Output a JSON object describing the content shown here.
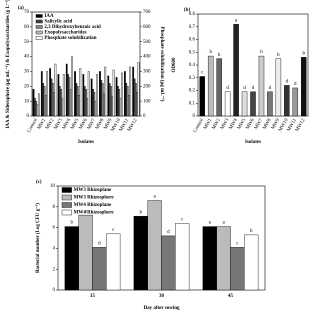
{
  "chart_data": [
    {
      "type": "bar",
      "panel": "(a)",
      "xlabel": "Isolates",
      "ylabel": "IAA & Siderophore (µg mL⁻¹) & Exopolysaccharides (g L⁻¹)",
      "y2label": "Phosphate solubilization (µg mL⁻¹)",
      "categories": [
        "Control",
        "MW1",
        "MW2",
        "MW3",
        "MW4",
        "MW5",
        "MW6",
        "MW7",
        "MW8",
        "MW9",
        "MW10",
        "MW11",
        "MW12"
      ],
      "series": [
        {
          "name": "IAA",
          "color": "#000000",
          "values": [
            18,
            30,
            32,
            28,
            35,
            30,
            28,
            25,
            30,
            27,
            26,
            30,
            33
          ]
        },
        {
          "name": "Salicylic acid",
          "color": "#444444",
          "values": [
            12,
            22,
            25,
            20,
            28,
            22,
            20,
            18,
            24,
            22,
            20,
            22,
            25
          ]
        },
        {
          "name": "2,3 Dihydroxybenzoic acid",
          "color": "#888888",
          "values": [
            10,
            20,
            22,
            18,
            26,
            20,
            18,
            16,
            22,
            20,
            18,
            20,
            22
          ]
        },
        {
          "name": "Exopolysaccharides",
          "color": "#bbbbbb",
          "values": [
            8,
            14,
            16,
            12,
            18,
            14,
            12,
            10,
            15,
            13,
            12,
            14,
            16
          ]
        },
        {
          "name": "Phosphate solubilization",
          "color": "#ffffff",
          "axis": "y2",
          "values": [
            150,
            300,
            350,
            280,
            400,
            320,
            300,
            280,
            330,
            310,
            290,
            330,
            360
          ]
        }
      ],
      "ylim": [
        0,
        70
      ],
      "yticks": [
        0,
        10,
        20,
        30,
        40,
        50,
        60,
        70
      ],
      "y2lim": [
        0,
        700
      ],
      "y2ticks": [
        0,
        100,
        200,
        300,
        400,
        500,
        600,
        700
      ],
      "legend": "upper left"
    },
    {
      "type": "bar",
      "panel": "(b)",
      "xlabel": "Isolates",
      "ylabel": "OD600",
      "categories": [
        "Control",
        "MW1",
        "MW2",
        "MW3",
        "MW4",
        "MW5",
        "MW6",
        "MW7",
        "MW8",
        "MW9",
        "MW10",
        "MW11",
        "MW12"
      ],
      "values": [
        0.31,
        0.47,
        0.45,
        0.19,
        0.72,
        0.19,
        0.19,
        0.47,
        0.19,
        0.45,
        0.24,
        0.22,
        0.46
      ],
      "letters": [
        "c",
        "b",
        "b",
        "d",
        "a",
        "d",
        "d",
        "b",
        "d",
        "b",
        "d",
        "d",
        "b"
      ],
      "colors": [
        "#000000",
        "#bbbbbb",
        "#666666",
        "#ffffff",
        "#222222",
        "#dddddd",
        "#444444",
        "#cccccc",
        "#777777",
        "#eeeeee",
        "#333333",
        "#999999",
        "#111111"
      ],
      "ylim": [
        0,
        0.8
      ],
      "yticks": [
        0,
        0.1,
        0.2,
        0.3,
        0.4,
        0.5,
        0.6,
        0.7,
        0.8
      ]
    },
    {
      "type": "bar",
      "panel": "(c)",
      "xlabel": "Day after sowing",
      "ylabel": "Bacterial number (Log CFU g⁻¹)",
      "categories": [
        "15",
        "30",
        "45"
      ],
      "series": [
        {
          "name": "MW3 Rhizoplane",
          "color": "#000000",
          "values": [
            6.1,
            7.1,
            6.1
          ],
          "letters": [
            "b",
            "b",
            "a"
          ]
        },
        {
          "name": "MW3 Rhizosphere",
          "color": "#bbbbbb",
          "values": [
            7.2,
            8.6,
            6.1
          ],
          "letters": [
            "a",
            "a",
            "a"
          ]
        },
        {
          "name": "MW4 Rhizoplane",
          "color": "#777777",
          "values": [
            4.1,
            5.2,
            4.1
          ],
          "letters": [
            "d",
            "d",
            "c"
          ]
        },
        {
          "name": "MW4 Rhizosphere",
          "color": "#ffffff",
          "values": [
            5.4,
            6.4,
            5.3
          ],
          "letters": [
            "c",
            "c",
            "b"
          ]
        }
      ],
      "ylim": [
        0,
        10
      ],
      "yticks": [
        0,
        2,
        4,
        6,
        8,
        10
      ],
      "legend": "upper left"
    }
  ]
}
